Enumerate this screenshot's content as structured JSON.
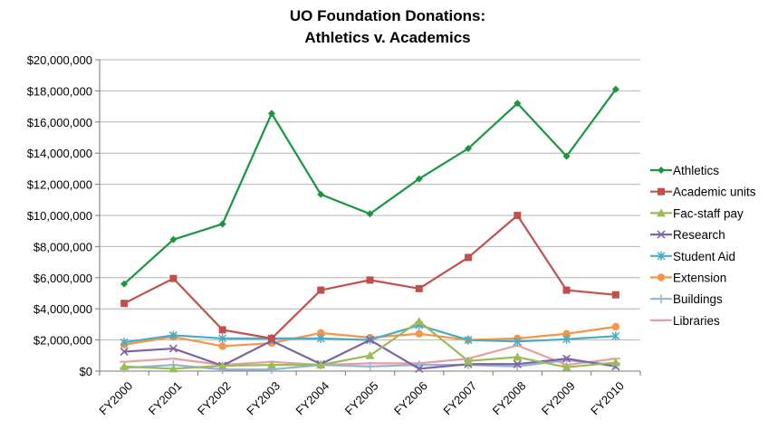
{
  "chart_data": {
    "type": "line",
    "title": [
      "UO Foundation Donations:",
      "Athletics v. Academics"
    ],
    "xlabel": "",
    "ylabel": "",
    "x": [
      "FY2000",
      "FY2001",
      "FY2002",
      "FY2003",
      "FY2004",
      "FY2005",
      "FY2006",
      "FY2007",
      "FY2008",
      "FY2009",
      "FY2010"
    ],
    "ylim": [
      0,
      20000000
    ],
    "yticks": [
      0,
      2000000,
      4000000,
      6000000,
      8000000,
      10000000,
      12000000,
      14000000,
      16000000,
      18000000,
      20000000
    ],
    "ytick_labels": [
      "$0",
      "$2,000,000",
      "$4,000,000",
      "$6,000,000",
      "$8,000,000",
      "$10,000,000",
      "$12,000,000",
      "$14,000,000",
      "$16,000,000",
      "$18,000,000",
      "$20,000,000"
    ],
    "grid": "horizontal",
    "legend_position": "right",
    "series": [
      {
        "name": "Athletics",
        "color": "#1a9641",
        "marker": "diamond",
        "values": [
          5600000,
          8450000,
          9450000,
          16550000,
          11350000,
          10100000,
          12350000,
          14300000,
          17200000,
          13800000,
          18100000
        ]
      },
      {
        "name": "Academic units",
        "color": "#c0504d",
        "marker": "square",
        "values": [
          4350000,
          5950000,
          2650000,
          2100000,
          5200000,
          5850000,
          5300000,
          7300000,
          10000000,
          5200000,
          4900000
        ]
      },
      {
        "name": "Fac-staff pay",
        "color": "#9bbb59",
        "marker": "triangle",
        "values": [
          300000,
          150000,
          350000,
          400000,
          400000,
          1000000,
          3200000,
          650000,
          900000,
          250000,
          550000
        ]
      },
      {
        "name": "Research",
        "color": "#8064a2",
        "marker": "x",
        "values": [
          1250000,
          1450000,
          350000,
          1950000,
          450000,
          2000000,
          150000,
          450000,
          450000,
          800000,
          300000
        ]
      },
      {
        "name": "Student Aid",
        "color": "#4bacc6",
        "marker": "star",
        "values": [
          1850000,
          2300000,
          2100000,
          2100000,
          2100000,
          2000000,
          2950000,
          2000000,
          1900000,
          2050000,
          2250000
        ]
      },
      {
        "name": "Extension",
        "color": "#f79646",
        "marker": "circle",
        "values": [
          1700000,
          2200000,
          1600000,
          1800000,
          2450000,
          2150000,
          2400000,
          2000000,
          2100000,
          2400000,
          2850000
        ]
      },
      {
        "name": "Buildings",
        "color": "#95b3d7",
        "marker": "plus",
        "values": [
          200000,
          400000,
          100000,
          100000,
          400000,
          300000,
          400000,
          400000,
          300000,
          700000,
          400000
        ]
      },
      {
        "name": "Libraries",
        "color": "#e6a0a0",
        "marker": "dash",
        "values": [
          600000,
          800000,
          400000,
          600000,
          400000,
          500000,
          500000,
          800000,
          1650000,
          400000,
          800000
        ]
      }
    ]
  }
}
